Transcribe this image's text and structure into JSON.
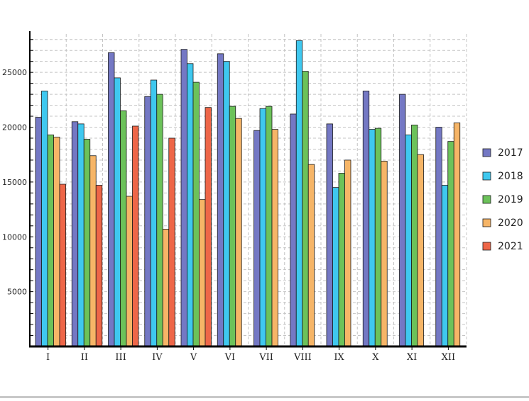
{
  "chart_data": {
    "type": "bar",
    "categories": [
      "I",
      "II",
      "III",
      "IV",
      "V",
      "VI",
      "VII",
      "VIII",
      "IX",
      "X",
      "XI",
      "XII"
    ],
    "series": [
      {
        "name": "2017",
        "color": "#7478c4",
        "values": [
          20900,
          20500,
          26800,
          22800,
          27100,
          26700,
          19700,
          21200,
          20300,
          23300,
          23000,
          20000
        ]
      },
      {
        "name": "2018",
        "color": "#3fc8ef",
        "values": [
          23300,
          20300,
          24500,
          24300,
          25800,
          26000,
          21700,
          27900,
          14500,
          19800,
          19300,
          14700
        ]
      },
      {
        "name": "2019",
        "color": "#6cc25a",
        "values": [
          19300,
          18900,
          21500,
          23000,
          24100,
          21900,
          21900,
          25100,
          15800,
          19900,
          20200,
          18700
        ]
      },
      {
        "name": "2020",
        "color": "#f6b567",
        "values": [
          19100,
          17400,
          13700,
          10700,
          13400,
          20800,
          19800,
          16600,
          17000,
          16900,
          17500,
          20400
        ]
      },
      {
        "name": "2021",
        "color": "#ee6648",
        "values": [
          14800,
          14700,
          20100,
          19000,
          21800,
          null,
          null,
          null,
          null,
          null,
          null,
          null
        ]
      }
    ],
    "yticks": [
      5000,
      10000,
      15000,
      20000,
      25000
    ],
    "ylim": [
      0,
      28500
    ],
    "title": "",
    "xlabel": "",
    "ylabel": "",
    "grid": true,
    "legend_position": "right"
  }
}
